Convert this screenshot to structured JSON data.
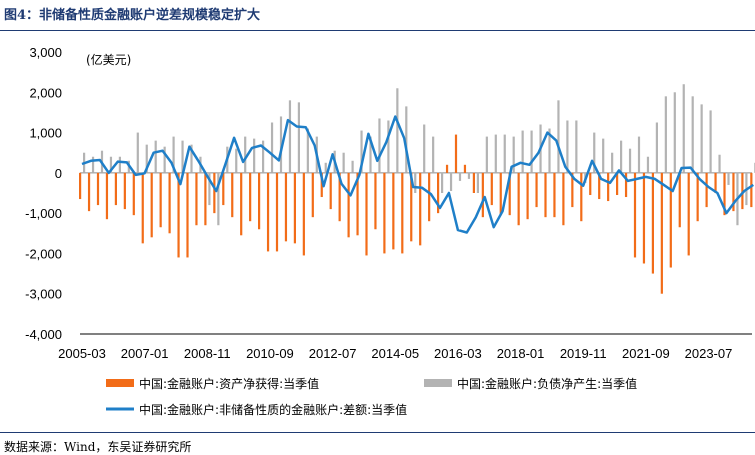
{
  "figure": {
    "title": "图4：非储备性质金融账户逆差规模稳定扩大",
    "source": "数据来源：Wind，东吴证券研究所"
  },
  "colors": {
    "assets": "#f26c18",
    "liabilities": "#b3b3b3",
    "net": "#1f7fc8",
    "title": "#1f3b73"
  },
  "chart_data": {
    "type": "bar",
    "unit_label": "(亿美元)",
    "ylim": [
      -4000,
      3000
    ],
    "yticks": [
      -4000,
      -3000,
      -2000,
      -1000,
      0,
      1000,
      2000,
      3000
    ],
    "ytick_labels": [
      "-4,000",
      "-3,000",
      "-2,000",
      "-1,000",
      "0",
      "1,000",
      "2,000",
      "3,000"
    ],
    "xtick_labels": [
      "2005-03",
      "2007-01",
      "2008-11",
      "2010-09",
      "2012-07",
      "2014-05",
      "2016-03",
      "2018-01",
      "2019-11",
      "2021-09",
      "2023-07"
    ],
    "xtick_indices": [
      0,
      7,
      14,
      21,
      28,
      35,
      42,
      49,
      56,
      63,
      70
    ],
    "legend_position": "bottom",
    "categories": [
      "2005-03",
      "2005-06",
      "2005-09",
      "2005-12",
      "2006-03",
      "2006-06",
      "2006-09",
      "2006-12",
      "2007-03",
      "2007-06",
      "2007-09",
      "2007-12",
      "2008-03",
      "2008-06",
      "2008-09",
      "2008-12",
      "2009-03",
      "2009-06",
      "2009-09",
      "2009-12",
      "2010-03",
      "2010-06",
      "2010-09",
      "2010-12",
      "2011-03",
      "2011-06",
      "2011-09",
      "2011-12",
      "2012-03",
      "2012-06",
      "2012-09",
      "2012-12",
      "2013-03",
      "2013-06",
      "2013-09",
      "2013-12",
      "2014-03",
      "2014-06",
      "2014-09",
      "2014-12",
      "2015-03",
      "2015-06",
      "2015-09",
      "2015-12",
      "2016-03",
      "2016-06",
      "2016-09",
      "2016-12",
      "2017-03",
      "2017-06",
      "2017-09",
      "2017-12",
      "2018-03",
      "2018-06",
      "2018-09",
      "2018-12",
      "2019-03",
      "2019-06",
      "2019-09",
      "2019-12",
      "2020-03",
      "2020-06",
      "2020-09",
      "2020-12",
      "2021-03",
      "2021-06",
      "2021-09",
      "2021-12",
      "2022-03",
      "2022-06",
      "2022-09",
      "2022-12",
      "2023-03",
      "2023-06",
      "2023-09",
      "2023-12"
    ],
    "series": [
      {
        "name": "中国:金融账户:资产净获得:当季值",
        "kind": "bar",
        "values": [
          -650,
          -950,
          -800,
          -1150,
          -800,
          -900,
          -1050,
          -1750,
          -1600,
          -1350,
          -1500,
          -2100,
          -2100,
          -1300,
          -1300,
          -1000,
          -800,
          -1100,
          -1550,
          -1200,
          -1400,
          -1950,
          -1950,
          -1700,
          -1750,
          -2050,
          -1100,
          -600,
          -900,
          -1200,
          -1600,
          -1550,
          -2050,
          -1400,
          -2000,
          -1900,
          -2000,
          -1700,
          -1800,
          -1200,
          -1000,
          200,
          950,
          200,
          -500,
          -1100,
          -800,
          -1050,
          -1050,
          -1300,
          -1150,
          -850,
          -1100,
          -1100,
          -1300,
          -850,
          -1200,
          -550,
          -650,
          -700,
          -550,
          -600,
          -2100,
          -2250,
          -2500,
          -3000,
          -2350,
          -1350,
          -2050,
          -1200,
          -850,
          -500,
          -1050,
          -950,
          -900,
          -850
        ]
      },
      {
        "name": "中国:金融账户:负债净产生:当季值",
        "kind": "bar",
        "values": [
          500,
          400,
          550,
          400,
          400,
          300,
          1000,
          700,
          800,
          650,
          900,
          800,
          700,
          400,
          -800,
          -1300,
          650,
          600,
          900,
          850,
          800,
          1250,
          1400,
          1800,
          1750,
          1100,
          900,
          250,
          550,
          500,
          300,
          1050,
          900,
          1350,
          1300,
          2100,
          1650,
          -500,
          1200,
          900,
          -500,
          -450,
          -200,
          -150,
          -500,
          900,
          950,
          950,
          900,
          1050,
          1050,
          1200,
          1100,
          1800,
          1300,
          1300,
          -250,
          1000,
          850,
          500,
          800,
          600,
          900,
          400,
          1250,
          1900,
          2000,
          2200,
          1900,
          1700,
          1550,
          450,
          -300,
          -1300,
          -800,
          250
        ]
      },
      {
        "name": "中国:金融账户:非储备性质的金融账户:差额:当季值",
        "kind": "line",
        "values": [
          220,
          300,
          320,
          0,
          280,
          260,
          -50,
          -10,
          500,
          550,
          250,
          -280,
          650,
          300,
          -80,
          -450,
          200,
          870,
          270,
          620,
          680,
          500,
          310,
          1310,
          1150,
          1130,
          680,
          -330,
          460,
          -270,
          -560,
          -50,
          970,
          300,
          760,
          1400,
          860,
          -350,
          -370,
          -530,
          -870,
          -500,
          -1420,
          -1480,
          -1100,
          -600,
          -1350,
          -950,
          150,
          250,
          200,
          500,
          1000,
          800,
          150,
          -150,
          -320,
          300,
          -150,
          -250,
          60,
          -200,
          -150,
          -100,
          -150,
          -300,
          -450,
          120,
          130,
          -150,
          -350,
          -500,
          -1000,
          -700,
          -450,
          -300
        ]
      }
    ]
  }
}
